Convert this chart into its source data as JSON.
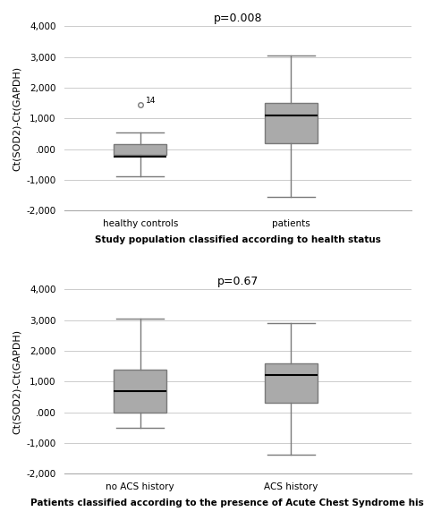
{
  "top_chart": {
    "title": "p=0.008",
    "xlabel": "Study population classified according to health status",
    "ylabel": "Ct(SOD2)-Ct(GAPDH)",
    "categories": [
      "healthy controls",
      "patients"
    ],
    "ylim": [
      -2000,
      4000
    ],
    "yticks": [
      -2000,
      -1000,
      0,
      1000,
      2000,
      3000,
      4000
    ],
    "ytick_labels": [
      "-2,000",
      "-1,000",
      ".000",
      "1,000",
      "2,000",
      "3,000",
      "4,000"
    ],
    "boxes": [
      {
        "q1": -200,
        "median": -260,
        "q3": 150,
        "whisker_low": -900,
        "whisker_high": 550,
        "outliers": [
          1450
        ]
      },
      {
        "q1": 200,
        "median": 1100,
        "q3": 1500,
        "whisker_low": -1550,
        "whisker_high": 3050,
        "outliers": []
      }
    ],
    "outlier_label": "14"
  },
  "bottom_chart": {
    "title": "p=0.67",
    "xlabel": "Patients classified according to the presence of Acute Chest Syndrome history",
    "ylabel": "Ct(SOD2)-Ct(GAPDH)",
    "categories": [
      "no ACS history",
      "ACS history"
    ],
    "ylim": [
      -2000,
      4000
    ],
    "yticks": [
      -2000,
      -1000,
      0,
      1000,
      2000,
      3000,
      4000
    ],
    "ytick_labels": [
      "-2,000",
      "-1,000",
      ".000",
      "1,000",
      "2,000",
      "3,000",
      "4,000"
    ],
    "boxes": [
      {
        "q1": 0,
        "median": 700,
        "q3": 1400,
        "whisker_low": -500,
        "whisker_high": 3050,
        "outliers": []
      },
      {
        "q1": 300,
        "median": 1200,
        "q3": 1600,
        "whisker_low": -1400,
        "whisker_high": 2900,
        "outliers": []
      }
    ],
    "outlier_label": ""
  },
  "background_color": "#ffffff",
  "grid_color": "#cccccc",
  "text_color": "#000000",
  "box_width": 0.35,
  "box_color": "#7a7a7a",
  "box_facecolor": "#aaaaaa",
  "linewidth": 1.0,
  "xlabel_fontsize": 7.5,
  "ylabel_fontsize": 8,
  "title_fontsize": 9,
  "tick_fontsize": 7.5
}
